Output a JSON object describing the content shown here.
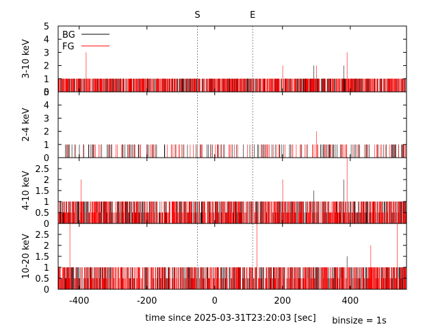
{
  "markers": [
    {
      "label": "S",
      "t": -51
    },
    {
      "label": "E",
      "t": 112
    }
  ],
  "legend": [
    {
      "name": "BG",
      "color": "#000000"
    },
    {
      "name": "FG",
      "color": "#ff0000"
    }
  ],
  "xlabel": "time since 2025-03-31T23:20:03 [sec]",
  "binsize_label": "binsize = 1s",
  "chart_data": {
    "type": "line",
    "style": "step histogram (1 s bins)",
    "xlim": [
      -462,
      566
    ],
    "x_ticks": [
      -400,
      -200,
      0,
      200,
      400
    ],
    "grid": false,
    "legend_position": "top-left",
    "binsize_s": 1,
    "panels": [
      {
        "ylabel": "3-10 keV",
        "ylim": [
          0,
          5
        ],
        "ticks": [
          0,
          1,
          2,
          3,
          4,
          5
        ],
        "peaks": {
          "FG": [
            [
              -380,
              3
            ],
            [
              390,
              3
            ],
            [
              200,
              2
            ],
            [
              300,
              2
            ]
          ],
          "BG": [
            [
              292,
              2
            ],
            [
              380,
              2
            ]
          ]
        },
        "typical_max": 1
      },
      {
        "ylabel": "2-4 keV",
        "ylim": [
          0,
          5
        ],
        "ticks": [
          0,
          1,
          2,
          3,
          4,
          5
        ],
        "peaks": {
          "FG": [
            [
              300,
              2
            ]
          ],
          "BG": []
        },
        "typical_max": 1
      },
      {
        "ylabel": "4-10 keV",
        "ylim": [
          0,
          3
        ],
        "ticks": [
          0,
          0.5,
          1,
          1.5,
          2,
          2.5
        ],
        "peaks": {
          "FG": [
            [
              -395,
              2
            ],
            [
              390,
              3
            ],
            [
              200,
              2
            ]
          ],
          "BG": [
            [
              292,
              1.5
            ],
            [
              380,
              2
            ]
          ]
        },
        "typical_max": 1
      },
      {
        "ylabel": "10-20 keV",
        "ylim": [
          0,
          3
        ],
        "ticks": [
          0,
          0.5,
          1,
          1.5,
          2,
          2.5
        ],
        "peaks": {
          "FG": [
            [
              -428,
              3
            ],
            [
              124,
              3
            ],
            [
              538,
              3
            ],
            [
              460,
              2
            ]
          ],
          "BG": [
            [
              390,
              1.5
            ]
          ]
        },
        "typical_max": 1
      }
    ],
    "series": [
      {
        "name": "BG",
        "color": "#000000"
      },
      {
        "name": "FG",
        "color": "#ff0000"
      }
    ]
  }
}
